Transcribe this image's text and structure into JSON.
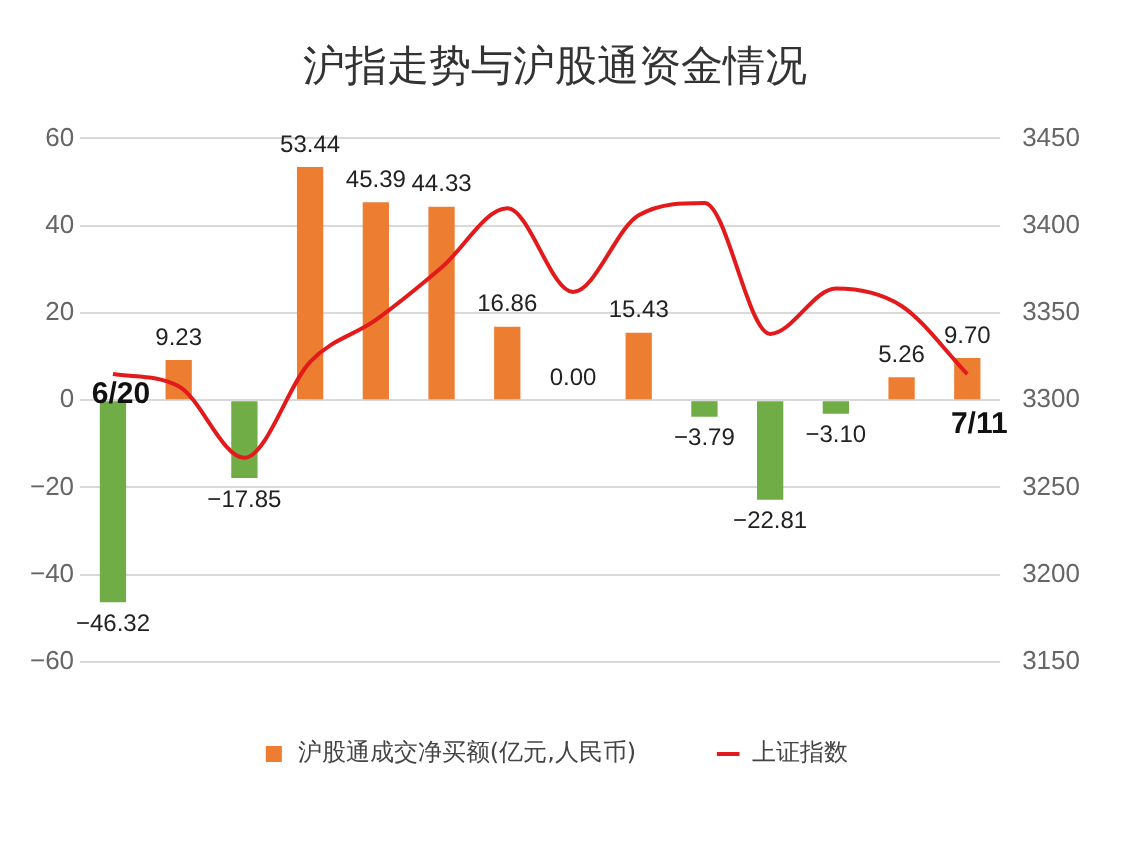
{
  "chart_data": {
    "type": "bar",
    "title": "沪指走势与沪股通资金情况",
    "categories": [
      null,
      null,
      null,
      null,
      null,
      null,
      null,
      null,
      null,
      null,
      null,
      null,
      null,
      null
    ],
    "series": [
      {
        "name": "沪股通成交净买额(亿元,人民币)",
        "color": "#ed7d31",
        "colors": [
          "#70ad47",
          "#ed7d31",
          "#70ad47",
          "#ed7d31",
          "#ed7d31",
          "#ed7d31",
          "#ed7d31",
          "#ed7d31",
          "#ed7d31",
          "#70ad47",
          "#70ad47",
          "#70ad47",
          "#ed7d31",
          "#ed7d31"
        ],
        "values": [
          -46.32,
          9.23,
          -17.85,
          53.44,
          45.39,
          44.33,
          16.86,
          0,
          15.43,
          -3.79,
          -22.81,
          -3.1,
          5.26,
          9.7
        ],
        "value_labels": [
          "−46.32",
          "9.23",
          "−17.85",
          "53.44",
          "45.39",
          "44.33",
          "16.86",
          "0.00",
          "15.43",
          "−3.79",
          "−22.81",
          "−3.10",
          "5.26",
          "9.70"
        ]
      },
      {
        "name": "上证指数",
        "type": "line",
        "axis": "y2",
        "color": "#e31a1c",
        "values": [
          3315,
          3308,
          3267,
          3322,
          3346,
          3376,
          3410,
          3362,
          3406,
          3413,
          3338,
          3364,
          3354,
          3315
        ]
      }
    ],
    "ylim": [
      -60,
      60
    ],
    "yticks": [
      -60,
      -40,
      -20,
      0,
      20,
      40,
      60
    ],
    "y2lim": [
      3150,
      3450
    ],
    "y2ticks": [
      3150,
      3200,
      3250,
      3300,
      3350,
      3400,
      3450
    ],
    "annotations": [
      "6/20",
      "7/11"
    ],
    "grid": "y",
    "legend": "bottom",
    "marker": "none"
  }
}
